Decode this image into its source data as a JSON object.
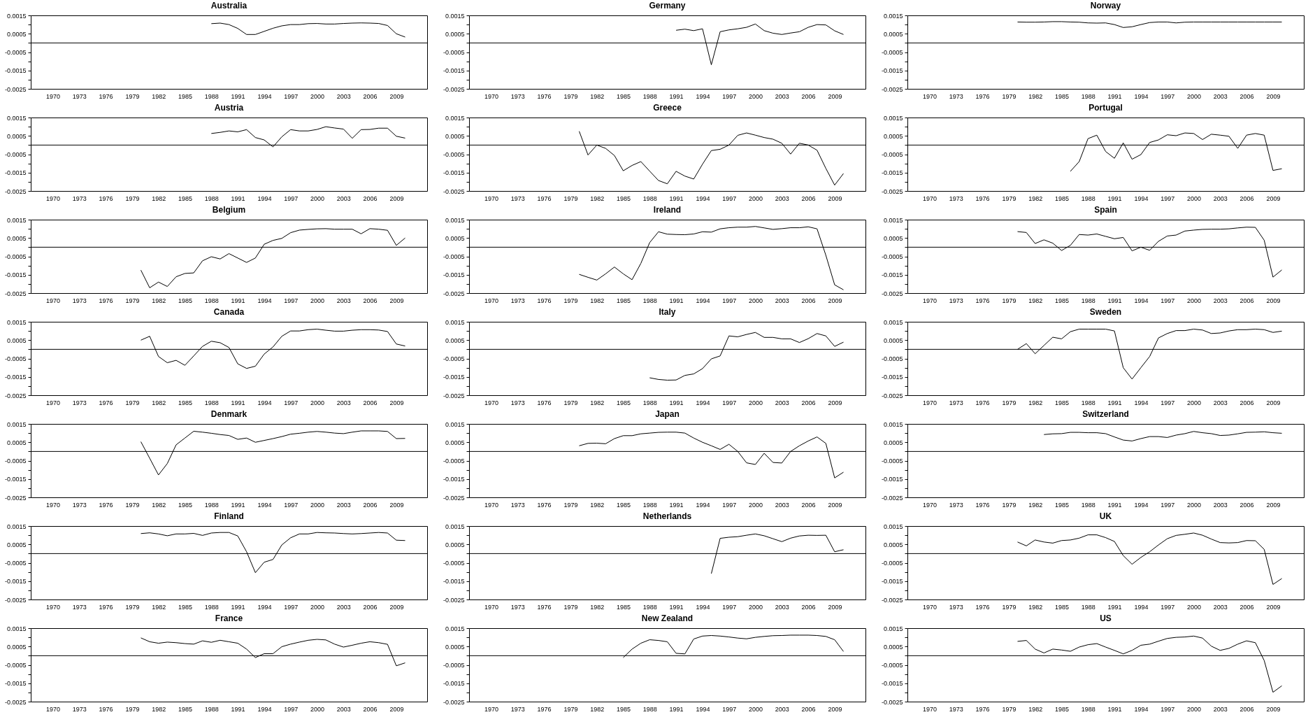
{
  "chart_data": [
    {
      "type": "line",
      "title": "Australia",
      "color": "#000000",
      "x": [
        1988,
        1989,
        1990,
        1991,
        1992,
        1993,
        1994,
        1995,
        1996,
        1997,
        1998,
        1999,
        2000,
        2001,
        2002,
        2003,
        2004,
        2005,
        2006,
        2007,
        2008,
        2009,
        2010
      ],
      "values": [
        0.00105,
        0.00108,
        0.001,
        0.00079,
        0.00046,
        0.00046,
        0.00063,
        0.0008,
        0.00093,
        0.001,
        0.001,
        0.00105,
        0.00106,
        0.00103,
        0.00103,
        0.00106,
        0.00108,
        0.00109,
        0.00108,
        0.00106,
        0.00095,
        0.0005,
        0.00032
      ],
      "xlim": [
        1967.5,
        2012.5
      ],
      "xticks": [
        1970,
        1973,
        1976,
        1979,
        1982,
        1985,
        1988,
        1991,
        1994,
        1997,
        2000,
        2003,
        2006,
        2009
      ],
      "ylim": [
        -0.0025,
        0.0015
      ],
      "yticks": [
        -0.0025,
        {
          "value": -0.002,
          "label": null
        },
        -0.0015,
        {
          "value": -0.001,
          "label": null
        },
        -0.0005,
        {
          "value": 0,
          "label": null
        },
        0.0005,
        {
          "value": 0.001,
          "label": null
        },
        0.0015
      ],
      "ref_lines": [
        {
          "axis": "y",
          "value": 0
        }
      ]
    },
    {
      "type": "line",
      "title": "Germany",
      "color": "#000000",
      "x": [
        1991,
        1992,
        1993,
        1994,
        1995,
        1996,
        1997,
        1998,
        1999,
        2000,
        2001,
        2002,
        2003,
        2004,
        2005,
        2006,
        2007,
        2008,
        2009,
        2010
      ],
      "values": [
        0.00069,
        0.00075,
        0.00067,
        0.00077,
        -0.00119,
        0.00061,
        0.00071,
        0.00077,
        0.00085,
        0.00103,
        0.00067,
        0.00053,
        0.00046,
        0.00054,
        0.00061,
        0.00085,
        0.001,
        0.00098,
        0.00066,
        0.00046
      ],
      "xlim": [
        1967.5,
        2012.5
      ],
      "xticks": [
        1970,
        1973,
        1976,
        1979,
        1982,
        1985,
        1988,
        1991,
        1994,
        1997,
        2000,
        2003,
        2006,
        2009
      ],
      "ylim": [
        -0.0025,
        0.0015
      ],
      "yticks": [
        -0.0025,
        {
          "value": -0.002,
          "label": null
        },
        -0.0015,
        {
          "value": -0.001,
          "label": null
        },
        -0.0005,
        {
          "value": 0,
          "label": null
        },
        0.0005,
        {
          "value": 0.001,
          "label": null
        },
        0.0015
      ],
      "ref_lines": [
        {
          "axis": "y",
          "value": 0
        }
      ]
    },
    {
      "type": "line",
      "title": "Norway",
      "color": "#000000",
      "x": [
        1980,
        1981,
        1982,
        1983,
        1984,
        1985,
        1986,
        1987,
        1988,
        1989,
        1990,
        1991,
        1992,
        1993,
        1994,
        1995,
        1996,
        1997,
        1998,
        1999,
        2000,
        2001,
        2002,
        2003,
        2004,
        2005,
        2006,
        2007,
        2008,
        2009,
        2010
      ],
      "values": [
        0.00114,
        0.00113,
        0.00113,
        0.00114,
        0.00116,
        0.00116,
        0.00114,
        0.00113,
        0.00109,
        0.00108,
        0.00109,
        0.001,
        0.00084,
        0.00088,
        0.001,
        0.00111,
        0.00114,
        0.00114,
        0.00109,
        0.00113,
        0.00114,
        0.00114,
        0.00114,
        0.00114,
        0.00114,
        0.00114,
        0.00114,
        0.00114,
        0.00114,
        0.00114,
        0.00114
      ],
      "xlim": [
        1967.5,
        2012.5
      ],
      "xticks": [
        1970,
        1973,
        1976,
        1979,
        1982,
        1985,
        1988,
        1991,
        1994,
        1997,
        2000,
        2003,
        2006,
        2009
      ],
      "ylim": [
        -0.0025,
        0.0015
      ],
      "yticks": [
        -0.0025,
        {
          "value": -0.002,
          "label": null
        },
        -0.0015,
        {
          "value": -0.001,
          "label": null
        },
        -0.0005,
        {
          "value": 0,
          "label": null
        },
        0.0005,
        {
          "value": 0.001,
          "label": null
        },
        0.0015
      ],
      "ref_lines": [
        {
          "axis": "y",
          "value": 0
        }
      ]
    },
    {
      "type": "line",
      "title": "Austria",
      "color": "#000000",
      "x": [
        1988,
        1989,
        1990,
        1991,
        1992,
        1993,
        1994,
        1995,
        1996,
        1997,
        1998,
        1999,
        2000,
        2001,
        2002,
        2003,
        2004,
        2005,
        2006,
        2007,
        2008,
        2009,
        2010
      ],
      "values": [
        0.00063,
        0.00069,
        0.00077,
        0.00072,
        0.00084,
        0.00041,
        0.00028,
        -0.0001,
        0.00045,
        0.00084,
        0.00077,
        0.00077,
        0.00085,
        0.001,
        0.00093,
        0.00087,
        0.00037,
        0.00084,
        0.00085,
        0.00092,
        0.00092,
        0.00048,
        0.00038
      ],
      "xlim": [
        1967.5,
        2012.5
      ],
      "xticks": [
        1970,
        1973,
        1976,
        1979,
        1982,
        1985,
        1988,
        1991,
        1994,
        1997,
        2000,
        2003,
        2006,
        2009
      ],
      "ylim": [
        -0.0025,
        0.0015
      ],
      "yticks": [
        -0.0025,
        {
          "value": -0.002,
          "label": null
        },
        -0.0015,
        {
          "value": -0.001,
          "label": null
        },
        -0.0005,
        {
          "value": 0,
          "label": null
        },
        0.0005,
        {
          "value": 0.001,
          "label": null
        },
        0.0015
      ],
      "ref_lines": [
        {
          "axis": "y",
          "value": 0
        }
      ]
    },
    {
      "type": "line",
      "title": "Greece",
      "color": "#000000",
      "x": [
        1980,
        1981,
        1982,
        1983,
        1984,
        1985,
        1986,
        1987,
        1988,
        1989,
        1990,
        1991,
        1992,
        1993,
        1994,
        1995,
        1996,
        1997,
        1998,
        1999,
        2000,
        2001,
        2002,
        2003,
        2004,
        2005,
        2006,
        2007,
        2008,
        2009,
        2010
      ],
      "values": [
        0.00075,
        -0.00054,
        0.0,
        -0.00018,
        -0.00057,
        -0.0014,
        -0.00111,
        -0.0009,
        -0.00142,
        -0.00193,
        -0.00211,
        -0.00143,
        -0.00169,
        -0.00185,
        -0.00104,
        -0.0003,
        -0.00023,
        0.0,
        0.00053,
        0.00066,
        0.00054,
        0.00041,
        0.00032,
        0.0001,
        -0.00049,
        0.0001,
        0.0,
        -0.00028,
        -0.00127,
        -0.00218,
        -0.00155
      ],
      "xlim": [
        1967.5,
        2012.5
      ],
      "xticks": [
        1970,
        1973,
        1976,
        1979,
        1982,
        1985,
        1988,
        1991,
        1994,
        1997,
        2000,
        2003,
        2006,
        2009
      ],
      "ylim": [
        -0.0025,
        0.0015
      ],
      "yticks": [
        -0.0025,
        {
          "value": -0.002,
          "label": null
        },
        -0.0015,
        {
          "value": -0.001,
          "label": null
        },
        -0.0005,
        {
          "value": 0,
          "label": null
        },
        0.0005,
        {
          "value": 0.001,
          "label": null
        },
        0.0015
      ],
      "ref_lines": [
        {
          "axis": "y",
          "value": 0
        }
      ]
    },
    {
      "type": "line",
      "title": "Portugal",
      "color": "#000000",
      "x": [
        1986,
        1987,
        1988,
        1989,
        1990,
        1991,
        1992,
        1993,
        1994,
        1995,
        1996,
        1997,
        1998,
        1999,
        2000,
        2001,
        2002,
        2003,
        2004,
        2005,
        2006,
        2007,
        2008,
        2009,
        2010
      ],
      "values": [
        -0.00143,
        -0.0009,
        0.00035,
        0.00054,
        -0.00035,
        -0.00072,
        0.00012,
        -0.00077,
        -0.00052,
        0.00014,
        0.00028,
        0.00056,
        0.00051,
        0.00066,
        0.00063,
        0.0003,
        0.00059,
        0.00054,
        0.00048,
        -0.00018,
        0.00054,
        0.00063,
        0.00054,
        -0.00138,
        -0.00129
      ],
      "xlim": [
        1967.5,
        2012.5
      ],
      "xticks": [
        1970,
        1973,
        1976,
        1979,
        1982,
        1985,
        1988,
        1991,
        1994,
        1997,
        2000,
        2003,
        2006,
        2009
      ],
      "ylim": [
        -0.0025,
        0.0015
      ],
      "yticks": [
        -0.0025,
        {
          "value": -0.002,
          "label": null
        },
        -0.0015,
        {
          "value": -0.001,
          "label": null
        },
        -0.0005,
        {
          "value": 0,
          "label": null
        },
        0.0005,
        {
          "value": 0.001,
          "label": null
        },
        0.0015
      ],
      "ref_lines": [
        {
          "axis": "y",
          "value": 0
        }
      ]
    },
    {
      "type": "line",
      "title": "Belgium",
      "color": "#000000",
      "x": [
        1980,
        1981,
        1982,
        1983,
        1984,
        1985,
        1986,
        1987,
        1988,
        1989,
        1990,
        1991,
        1992,
        1993,
        1994,
        1995,
        1996,
        1997,
        1998,
        1999,
        2000,
        2001,
        2002,
        2003,
        2004,
        2005,
        2006,
        2007,
        2008,
        2009,
        2010
      ],
      "values": [
        -0.00125,
        -0.00221,
        -0.0019,
        -0.00214,
        -0.00161,
        -0.00143,
        -0.0014,
        -0.00074,
        -0.00052,
        -0.00064,
        -0.00035,
        -0.00059,
        -0.00083,
        -0.00059,
        0.00016,
        0.00037,
        0.00048,
        0.00079,
        0.00093,
        0.00097,
        0.001,
        0.00101,
        0.00098,
        0.00098,
        0.00098,
        0.00073,
        0.00101,
        0.00098,
        0.00092,
        0.0001,
        0.0005
      ],
      "xlim": [
        1967.5,
        2012.5
      ],
      "xticks": [
        1970,
        1973,
        1976,
        1979,
        1982,
        1985,
        1988,
        1991,
        1994,
        1997,
        2000,
        2003,
        2006,
        2009
      ],
      "ylim": [
        -0.0025,
        0.0015
      ],
      "yticks": [
        -0.0025,
        {
          "value": -0.002,
          "label": null
        },
        -0.0015,
        {
          "value": -0.001,
          "label": null
        },
        -0.0005,
        {
          "value": 0,
          "label": null
        },
        0.0005,
        {
          "value": 0.001,
          "label": null
        },
        0.0015
      ],
      "ref_lines": [
        {
          "axis": "y",
          "value": 0
        }
      ]
    },
    {
      "type": "line",
      "title": "Ireland",
      "color": "#000000",
      "x": [
        1980,
        1981,
        1982,
        1983,
        1984,
        1985,
        1986,
        1987,
        1988,
        1989,
        1990,
        1991,
        1992,
        1993,
        1994,
        1995,
        1996,
        1997,
        1998,
        1999,
        2000,
        2001,
        2002,
        2003,
        2004,
        2005,
        2006,
        2007,
        2008,
        2009,
        2010
      ],
      "values": [
        -0.00148,
        -0.00164,
        -0.00179,
        -0.00145,
        -0.00108,
        -0.00145,
        -0.00177,
        -0.00088,
        0.00025,
        0.00084,
        0.00071,
        0.00069,
        0.00068,
        0.00072,
        0.00084,
        0.00082,
        0.001,
        0.00106,
        0.00109,
        0.00109,
        0.00113,
        0.00105,
        0.00097,
        0.00101,
        0.00106,
        0.00106,
        0.00111,
        0.001,
        -0.00044,
        -0.00205,
        -0.00232
      ],
      "xlim": [
        1967.5,
        2012.5
      ],
      "xticks": [
        1970,
        1973,
        1976,
        1979,
        1982,
        1985,
        1988,
        1991,
        1994,
        1997,
        2000,
        2003,
        2006,
        2009
      ],
      "ylim": [
        -0.0025,
        0.0015
      ],
      "yticks": [
        -0.0025,
        {
          "value": -0.002,
          "label": null
        },
        -0.0015,
        {
          "value": -0.001,
          "label": null
        },
        -0.0005,
        {
          "value": 0,
          "label": null
        },
        0.0005,
        {
          "value": 0.001,
          "label": null
        },
        0.0015
      ],
      "ref_lines": [
        {
          "axis": "y",
          "value": 0
        }
      ]
    },
    {
      "type": "line",
      "title": "Spain",
      "color": "#000000",
      "x": [
        1980,
        1981,
        1982,
        1983,
        1984,
        1985,
        1986,
        1987,
        1988,
        1989,
        1990,
        1991,
        1992,
        1993,
        1994,
        1995,
        1996,
        1997,
        1998,
        1999,
        2000,
        2001,
        2002,
        2003,
        2004,
        2005,
        2006,
        2007,
        2008,
        2009,
        2010
      ],
      "values": [
        0.00085,
        0.0008,
        0.0002,
        0.0004,
        0.00022,
        -0.00018,
        0.0001,
        0.00069,
        0.00066,
        0.00072,
        0.00059,
        0.00046,
        0.00053,
        -0.0002,
        0.0,
        -0.00017,
        0.00032,
        0.00061,
        0.00066,
        0.00088,
        0.00093,
        0.00097,
        0.00098,
        0.00098,
        0.001,
        0.00105,
        0.00109,
        0.00108,
        0.00038,
        -0.00163,
        -0.00124
      ],
      "xlim": [
        1967.5,
        2012.5
      ],
      "xticks": [
        1970,
        1973,
        1976,
        1979,
        1982,
        1985,
        1988,
        1991,
        1994,
        1997,
        2000,
        2003,
        2006,
        2009
      ],
      "ylim": [
        -0.0025,
        0.0015
      ],
      "yticks": [
        -0.0025,
        {
          "value": -0.002,
          "label": null
        },
        -0.0015,
        {
          "value": -0.001,
          "label": null
        },
        -0.0005,
        {
          "value": 0,
          "label": null
        },
        0.0005,
        {
          "value": 0.001,
          "label": null
        },
        0.0015
      ],
      "ref_lines": [
        {
          "axis": "y",
          "value": 0
        }
      ]
    },
    {
      "type": "line",
      "title": "Canada",
      "color": "#000000",
      "x": [
        1980,
        1981,
        1982,
        1983,
        1984,
        1985,
        1986,
        1987,
        1988,
        1989,
        1990,
        1991,
        1992,
        1993,
        1994,
        1995,
        1996,
        1997,
        1998,
        1999,
        2000,
        2001,
        2002,
        2003,
        2004,
        2005,
        2006,
        2007,
        2008,
        2009,
        2010
      ],
      "values": [
        0.0005,
        0.00071,
        -0.00039,
        -0.00073,
        -0.0006,
        -0.00087,
        -0.00036,
        0.00016,
        0.00044,
        0.00036,
        0.0001,
        -0.00079,
        -0.00104,
        -0.00092,
        -0.00026,
        0.00013,
        0.00071,
        0.001,
        0.001,
        0.00107,
        0.0011,
        0.00104,
        0.00099,
        0.00099,
        0.00104,
        0.00107,
        0.00107,
        0.00105,
        0.00097,
        0.00029,
        0.00018
      ],
      "xlim": [
        1967.5,
        2012.5
      ],
      "xticks": [
        1970,
        1973,
        1976,
        1979,
        1982,
        1985,
        1988,
        1991,
        1994,
        1997,
        2000,
        2003,
        2006,
        2009
      ],
      "ylim": [
        -0.0025,
        0.0015
      ],
      "yticks": [
        -0.0025,
        {
          "value": -0.002,
          "label": null
        },
        -0.0015,
        {
          "value": -0.001,
          "label": null
        },
        -0.0005,
        {
          "value": 0,
          "label": null
        },
        0.0005,
        {
          "value": 0.001,
          "label": null
        },
        0.0015
      ],
      "ref_lines": [
        {
          "axis": "y",
          "value": 0
        }
      ]
    },
    {
      "type": "line",
      "title": "Italy",
      "color": "#000000",
      "x": [
        1988,
        1989,
        1990,
        1991,
        1992,
        1993,
        1994,
        1995,
        1996,
        1997,
        1998,
        1999,
        2000,
        2001,
        2002,
        2003,
        2004,
        2005,
        2006,
        2007,
        2008,
        2009,
        2010
      ],
      "values": [
        -0.00155,
        -0.00164,
        -0.00168,
        -0.00167,
        -0.00142,
        -0.00134,
        -0.00105,
        -0.00052,
        -0.00036,
        0.00073,
        0.00068,
        0.00081,
        0.00092,
        0.00065,
        0.00065,
        0.00057,
        0.00057,
        0.00037,
        0.00058,
        0.00086,
        0.00073,
        0.00016,
        0.00039
      ],
      "xlim": [
        1967.5,
        2012.5
      ],
      "xticks": [
        1970,
        1973,
        1976,
        1979,
        1982,
        1985,
        1988,
        1991,
        1994,
        1997,
        2000,
        2003,
        2006,
        2009
      ],
      "ylim": [
        -0.0025,
        0.0015
      ],
      "yticks": [
        -0.0025,
        {
          "value": -0.002,
          "label": null
        },
        -0.0015,
        {
          "value": -0.001,
          "label": null
        },
        -0.0005,
        {
          "value": 0,
          "label": null
        },
        0.0005,
        {
          "value": 0.001,
          "label": null
        },
        0.0015
      ],
      "ref_lines": [
        {
          "axis": "y",
          "value": 0
        }
      ]
    },
    {
      "type": "line",
      "title": "Sweden",
      "color": "#000000",
      "x": [
        1980,
        1981,
        1982,
        1983,
        1984,
        1985,
        1986,
        1987,
        1988,
        1989,
        1990,
        1991,
        1992,
        1993,
        1994,
        1995,
        1996,
        1997,
        1998,
        1999,
        2000,
        2001,
        2002,
        2003,
        2004,
        2005,
        2006,
        2007,
        2008,
        2009,
        2010
      ],
      "values": [
        0.0,
        0.00031,
        -0.00024,
        0.00021,
        0.00066,
        0.00057,
        0.00096,
        0.0011,
        0.0011,
        0.0011,
        0.0011,
        0.001,
        -0.001,
        -0.00162,
        -0.001,
        -0.00039,
        0.00062,
        0.00086,
        0.00102,
        0.00102,
        0.0011,
        0.00105,
        0.00086,
        0.00089,
        0.001,
        0.00107,
        0.00107,
        0.0011,
        0.00107,
        0.00092,
        0.00099
      ],
      "xlim": [
        1967.5,
        2012.5
      ],
      "xticks": [
        1970,
        1973,
        1976,
        1979,
        1982,
        1985,
        1988,
        1991,
        1994,
        1997,
        2000,
        2003,
        2006,
        2009
      ],
      "ylim": [
        -0.0025,
        0.0015
      ],
      "yticks": [
        -0.0025,
        {
          "value": -0.002,
          "label": null
        },
        -0.0015,
        {
          "value": -0.001,
          "label": null
        },
        -0.0005,
        {
          "value": 0,
          "label": null
        },
        0.0005,
        {
          "value": 0.001,
          "label": null
        },
        0.0015
      ],
      "ref_lines": [
        {
          "axis": "y",
          "value": 0
        }
      ]
    },
    {
      "type": "line",
      "title": "Denmark",
      "color": "#000000",
      "x": [
        1980,
        1981,
        1982,
        1983,
        1984,
        1985,
        1986,
        1987,
        1988,
        1989,
        1990,
        1991,
        1992,
        1993,
        1994,
        1995,
        1996,
        1997,
        1998,
        1999,
        2000,
        2001,
        2002,
        2003,
        2004,
        2005,
        2006,
        2007,
        2008,
        2009,
        2010
      ],
      "values": [
        0.00053,
        -0.00037,
        -0.00128,
        -0.00066,
        0.00036,
        0.00073,
        0.0011,
        0.00105,
        0.00099,
        0.00092,
        0.00087,
        0.00066,
        0.00073,
        0.0005,
        0.0006,
        0.0007,
        0.00081,
        0.00094,
        0.00099,
        0.00105,
        0.00109,
        0.00105,
        0.001,
        0.00097,
        0.00105,
        0.00112,
        0.00112,
        0.00112,
        0.00109,
        0.0007,
        0.00071
      ],
      "xlim": [
        1967.5,
        2012.5
      ],
      "xticks": [
        1970,
        1973,
        1976,
        1979,
        1982,
        1985,
        1988,
        1991,
        1994,
        1997,
        2000,
        2003,
        2006,
        2009
      ],
      "ylim": [
        -0.0025,
        0.0015
      ],
      "yticks": [
        -0.0025,
        {
          "value": -0.002,
          "label": null
        },
        -0.0015,
        {
          "value": -0.001,
          "label": null
        },
        -0.0005,
        {
          "value": 0,
          "label": null
        },
        0.0005,
        {
          "value": 0.001,
          "label": null
        },
        0.0015
      ],
      "ref_lines": [
        {
          "axis": "y",
          "value": 0
        }
      ]
    },
    {
      "type": "line",
      "title": "Japan",
      "color": "#000000",
      "x": [
        1980,
        1981,
        1982,
        1983,
        1984,
        1985,
        1986,
        1987,
        1988,
        1989,
        1990,
        1991,
        1992,
        1993,
        1994,
        1995,
        1996,
        1997,
        1998,
        1999,
        2000,
        2001,
        2002,
        2003,
        2004,
        2005,
        2006,
        2007,
        2008,
        2009,
        2010
      ],
      "values": [
        0.00031,
        0.00044,
        0.00045,
        0.00042,
        0.0007,
        0.00086,
        0.00086,
        0.00096,
        0.001,
        0.00104,
        0.00105,
        0.00105,
        0.001,
        0.00073,
        0.0005,
        0.00031,
        0.00011,
        0.00039,
        0.0,
        -0.00062,
        -0.00071,
        -0.0001,
        -0.0006,
        -0.00063,
        0.0,
        0.00031,
        0.00057,
        0.00079,
        0.00044,
        -0.00144,
        -0.00113
      ],
      "xlim": [
        1967.5,
        2012.5
      ],
      "xticks": [
        1970,
        1973,
        1976,
        1979,
        1982,
        1985,
        1988,
        1991,
        1994,
        1997,
        2000,
        2003,
        2006,
        2009
      ],
      "ylim": [
        -0.0025,
        0.0015
      ],
      "yticks": [
        -0.0025,
        {
          "value": -0.002,
          "label": null
        },
        -0.0015,
        {
          "value": -0.001,
          "label": null
        },
        -0.0005,
        {
          "value": 0,
          "label": null
        },
        0.0005,
        {
          "value": 0.001,
          "label": null
        },
        0.0015
      ],
      "ref_lines": [
        {
          "axis": "y",
          "value": 0
        }
      ]
    },
    {
      "type": "line",
      "title": "Switzerland",
      "color": "#000000",
      "x": [
        1983,
        1984,
        1985,
        1986,
        1987,
        1988,
        1989,
        1990,
        1991,
        1992,
        1993,
        1994,
        1995,
        1996,
        1997,
        1998,
        1999,
        2000,
        2001,
        2002,
        2003,
        2004,
        2005,
        2006,
        2007,
        2008,
        2009,
        2010
      ],
      "values": [
        0.00092,
        0.00096,
        0.00097,
        0.00104,
        0.00104,
        0.00102,
        0.00102,
        0.00097,
        0.00079,
        0.00062,
        0.00057,
        0.0007,
        0.00081,
        0.00081,
        0.00076,
        0.00089,
        0.00097,
        0.00109,
        0.00102,
        0.00097,
        0.00087,
        0.00089,
        0.00096,
        0.00104,
        0.00105,
        0.00107,
        0.00102,
        0.00099
      ],
      "xlim": [
        1967.5,
        2012.5
      ],
      "xticks": [
        1970,
        1973,
        1976,
        1979,
        1982,
        1985,
        1988,
        1991,
        1994,
        1997,
        2000,
        2003,
        2006,
        2009
      ],
      "ylim": [
        -0.0025,
        0.0015
      ],
      "yticks": [
        -0.0025,
        {
          "value": -0.002,
          "label": null
        },
        -0.0015,
        {
          "value": -0.001,
          "label": null
        },
        -0.0005,
        {
          "value": 0,
          "label": null
        },
        0.0005,
        {
          "value": 0.001,
          "label": null
        },
        0.0015
      ],
      "ref_lines": [
        {
          "axis": "y",
          "value": 0
        }
      ]
    },
    {
      "type": "line",
      "title": "Finland",
      "color": "#000000",
      "x": [
        1980,
        1981,
        1982,
        1983,
        1984,
        1985,
        1986,
        1987,
        1988,
        1989,
        1990,
        1991,
        1992,
        1993,
        1994,
        1995,
        1996,
        1997,
        1998,
        1999,
        2000,
        2001,
        2002,
        2003,
        2004,
        2005,
        2006,
        2007,
        2008,
        2009,
        2010
      ],
      "values": [
        0.00109,
        0.00113,
        0.00107,
        0.00097,
        0.00107,
        0.00107,
        0.0011,
        0.00099,
        0.00112,
        0.00115,
        0.00115,
        0.00096,
        0.0001,
        -0.00104,
        -0.00047,
        -0.00032,
        0.00047,
        0.00086,
        0.00107,
        0.00107,
        0.00115,
        0.00113,
        0.00112,
        0.00109,
        0.00107,
        0.00109,
        0.00112,
        0.00115,
        0.00112,
        0.00073,
        0.00071
      ],
      "xlim": [
        1967.5,
        2012.5
      ],
      "xticks": [
        1970,
        1973,
        1976,
        1979,
        1982,
        1985,
        1988,
        1991,
        1994,
        1997,
        2000,
        2003,
        2006,
        2009
      ],
      "ylim": [
        -0.0025,
        0.0015
      ],
      "yticks": [
        -0.0025,
        {
          "value": -0.002,
          "label": null
        },
        -0.0015,
        {
          "value": -0.001,
          "label": null
        },
        -0.0005,
        {
          "value": 0,
          "label": null
        },
        0.0005,
        {
          "value": 0.001,
          "label": null
        },
        0.0015
      ],
      "ref_lines": [
        {
          "axis": "y",
          "value": 0
        }
      ]
    },
    {
      "type": "line",
      "title": "Netherlands",
      "color": "#000000",
      "x": [
        1995,
        1996,
        1997,
        1998,
        1999,
        2000,
        2001,
        2002,
        2003,
        2004,
        2005,
        2006,
        2007,
        2008,
        2009,
        2010
      ],
      "values": [
        -0.00109,
        0.00083,
        0.00089,
        0.00092,
        0.001,
        0.00107,
        0.00097,
        0.00081,
        0.00065,
        0.00084,
        0.00096,
        0.001,
        0.00099,
        0.001,
        0.0001,
        0.00021
      ],
      "xlim": [
        1967.5,
        2012.5
      ],
      "xticks": [
        1970,
        1973,
        1976,
        1979,
        1982,
        1985,
        1988,
        1991,
        1994,
        1997,
        2000,
        2003,
        2006,
        2009
      ],
      "ylim": [
        -0.0025,
        0.0015
      ],
      "yticks": [
        -0.0025,
        {
          "value": -0.002,
          "label": null
        },
        -0.0015,
        {
          "value": -0.001,
          "label": null
        },
        -0.0005,
        {
          "value": 0,
          "label": null
        },
        0.0005,
        {
          "value": 0.001,
          "label": null
        },
        0.0015
      ],
      "ref_lines": [
        {
          "axis": "y",
          "value": 0
        }
      ]
    },
    {
      "type": "line",
      "title": "UK",
      "color": "#000000",
      "x": [
        1980,
        1981,
        1982,
        1983,
        1984,
        1985,
        1986,
        1987,
        1988,
        1989,
        1990,
        1991,
        1992,
        1993,
        1994,
        1995,
        1996,
        1997,
        1998,
        1999,
        2000,
        2001,
        2002,
        2003,
        2004,
        2005,
        2006,
        2007,
        2008,
        2009,
        2010
      ],
      "values": [
        0.00063,
        0.00042,
        0.00074,
        0.00063,
        0.00057,
        0.00071,
        0.00074,
        0.00084,
        0.00102,
        0.00102,
        0.00087,
        0.00066,
        -0.00011,
        -0.00058,
        -0.00021,
        0.0001,
        0.00047,
        0.00081,
        0.00099,
        0.00105,
        0.00112,
        0.001,
        0.00079,
        0.0006,
        0.00058,
        0.0006,
        0.00071,
        0.0007,
        0.00023,
        -0.00168,
        -0.00136
      ],
      "xlim": [
        1967.5,
        2012.5
      ],
      "xticks": [
        1970,
        1973,
        1976,
        1979,
        1982,
        1985,
        1988,
        1991,
        1994,
        1997,
        2000,
        2003,
        2006,
        2009
      ],
      "ylim": [
        -0.0025,
        0.0015
      ],
      "yticks": [
        -0.0025,
        {
          "value": -0.002,
          "label": null
        },
        -0.0015,
        {
          "value": -0.001,
          "label": null
        },
        -0.0005,
        {
          "value": 0,
          "label": null
        },
        0.0005,
        {
          "value": 0.001,
          "label": null
        },
        0.0015
      ],
      "ref_lines": [
        {
          "axis": "y",
          "value": 0
        }
      ]
    },
    {
      "type": "line",
      "title": "France",
      "color": "#000000",
      "x": [
        1980,
        1981,
        1982,
        1983,
        1984,
        1985,
        1986,
        1987,
        1988,
        1989,
        1990,
        1991,
        1992,
        1993,
        1994,
        1995,
        1996,
        1997,
        1998,
        1999,
        2000,
        2001,
        2002,
        2003,
        2004,
        2005,
        2006,
        2007,
        2008,
        2009,
        2010
      ],
      "values": [
        0.00097,
        0.00076,
        0.00068,
        0.00074,
        0.00071,
        0.00066,
        0.00063,
        0.00081,
        0.00073,
        0.00084,
        0.00076,
        0.00068,
        0.00036,
        -0.0001,
        0.00011,
        0.00011,
        0.00049,
        0.00063,
        0.00074,
        0.00084,
        0.00089,
        0.00086,
        0.00063,
        0.00047,
        0.00057,
        0.00068,
        0.00076,
        0.00071,
        0.00062,
        -0.00055,
        -0.00039
      ],
      "xlim": [
        1967.5,
        2012.5
      ],
      "xticks": [
        1970,
        1973,
        1976,
        1979,
        1982,
        1985,
        1988,
        1991,
        1994,
        1997,
        2000,
        2003,
        2006,
        2009
      ],
      "ylim": [
        -0.0025,
        0.0015
      ],
      "yticks": [
        -0.0025,
        {
          "value": -0.002,
          "label": null
        },
        -0.0015,
        {
          "value": -0.001,
          "label": null
        },
        -0.0005,
        {
          "value": 0,
          "label": null
        },
        0.0005,
        {
          "value": 0.001,
          "label": null
        },
        0.0015
      ],
      "ref_lines": [
        {
          "axis": "y",
          "value": 0
        }
      ]
    },
    {
      "type": "line",
      "title": "New Zealand",
      "color": "#000000",
      "x": [
        1985,
        1986,
        1987,
        1988,
        1989,
        1990,
        1991,
        1992,
        1993,
        1994,
        1995,
        1996,
        1997,
        1998,
        1999,
        2000,
        2001,
        2002,
        2003,
        2004,
        2005,
        2006,
        2007,
        2008,
        2009,
        2010
      ],
      "values": [
        -0.0001,
        0.00036,
        0.00068,
        0.00087,
        0.00083,
        0.00076,
        0.00013,
        0.0001,
        0.00091,
        0.00107,
        0.0011,
        0.00107,
        0.00102,
        0.00096,
        0.00092,
        0.001,
        0.00105,
        0.00109,
        0.0011,
        0.00112,
        0.00112,
        0.00112,
        0.0011,
        0.00105,
        0.00087,
        0.00023
      ],
      "xlim": [
        1967.5,
        2012.5
      ],
      "xticks": [
        1970,
        1973,
        1976,
        1979,
        1982,
        1985,
        1988,
        1991,
        1994,
        1997,
        2000,
        2003,
        2006,
        2009
      ],
      "ylim": [
        -0.0025,
        0.0015
      ],
      "yticks": [
        -0.0025,
        {
          "value": -0.002,
          "label": null
        },
        -0.0015,
        {
          "value": -0.001,
          "label": null
        },
        -0.0005,
        {
          "value": 0,
          "label": null
        },
        0.0005,
        {
          "value": 0.001,
          "label": null
        },
        0.0015
      ],
      "ref_lines": [
        {
          "axis": "y",
          "value": 0
        }
      ]
    },
    {
      "type": "line",
      "title": "US",
      "color": "#000000",
      "x": [
        1980,
        1981,
        1982,
        1983,
        1984,
        1985,
        1986,
        1987,
        1988,
        1989,
        1990,
        1991,
        1992,
        1993,
        1994,
        1995,
        1996,
        1997,
        1998,
        1999,
        2000,
        2001,
        2002,
        2003,
        2004,
        2005,
        2006,
        2007,
        2008,
        2009,
        2010
      ],
      "values": [
        0.00078,
        0.00083,
        0.00036,
        0.00015,
        0.00036,
        0.00031,
        0.00024,
        0.00047,
        0.0006,
        0.00066,
        0.00047,
        0.00029,
        0.0001,
        0.00029,
        0.00057,
        0.00063,
        0.00079,
        0.00094,
        0.001,
        0.00102,
        0.00107,
        0.00096,
        0.00052,
        0.00029,
        0.0004,
        0.00063,
        0.00081,
        0.00071,
        -0.00026,
        -0.00199,
        -0.00164
      ],
      "xlim": [
        1967.5,
        2012.5
      ],
      "xticks": [
        1970,
        1973,
        1976,
        1979,
        1982,
        1985,
        1988,
        1991,
        1994,
        1997,
        2000,
        2003,
        2006,
        2009
      ],
      "ylim": [
        -0.0025,
        0.0015
      ],
      "yticks": [
        -0.0025,
        {
          "value": -0.002,
          "label": null
        },
        -0.0015,
        {
          "value": -0.001,
          "label": null
        },
        -0.0005,
        {
          "value": 0,
          "label": null
        },
        0.0005,
        {
          "value": 0.001,
          "label": null
        },
        0.0015
      ],
      "ref_lines": [
        {
          "axis": "y",
          "value": 0
        }
      ]
    }
  ]
}
